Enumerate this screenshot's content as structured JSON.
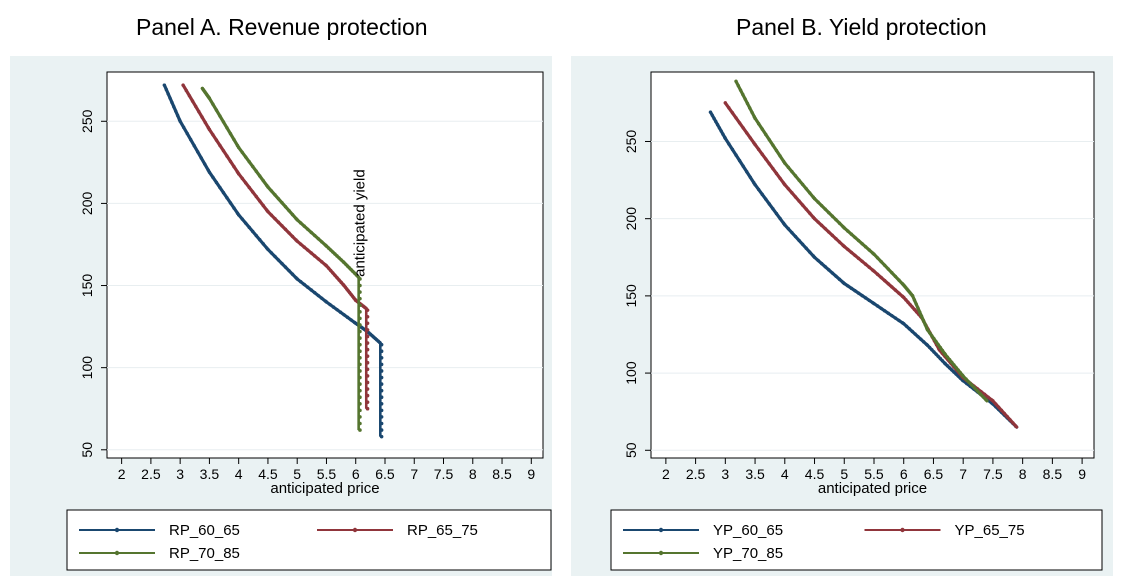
{
  "colors": {
    "outer_bg": "#eaf2f3",
    "plot_bg": "#ffffff",
    "grid": "#e8eef0",
    "series": [
      "#1a476f",
      "#90353b",
      "#55752f"
    ]
  },
  "chart_data": [
    {
      "type": "line",
      "title": "Panel A. Revenue protection",
      "xlabel": "anticipated price",
      "ylabel": "",
      "xlim": [
        1.75,
        9.2
      ],
      "ylim": [
        45,
        280
      ],
      "xticks": [
        "2",
        "2.5",
        "3",
        "3.5",
        "4",
        "4.5",
        "5",
        "5.5",
        "6",
        "6.5",
        "7",
        "7.5",
        "8",
        "8.5",
        "9"
      ],
      "yticks": [
        "50",
        "100",
        "150",
        "200",
        "250"
      ],
      "annotation": {
        "text": "anticipated yield",
        "x": 6.05,
        "y": 140
      },
      "legend": [
        "RP_60_65",
        "RP_65_75",
        "RP_70_85"
      ],
      "series": [
        {
          "name": "RP_60_65",
          "vertical": [
            6.42,
            58,
            115
          ],
          "points": [
            [
              2.73,
              272
            ],
            [
              3,
              250
            ],
            [
              3.5,
              219
            ],
            [
              4,
              193
            ],
            [
              4.5,
              172
            ],
            [
              5,
              154
            ],
            [
              5.5,
              140
            ],
            [
              6,
              127
            ],
            [
              6.2,
              122
            ],
            [
              6.42,
              115
            ]
          ]
        },
        {
          "name": "RP_65_75",
          "vertical": [
            6.18,
            75,
            136
          ],
          "points": [
            [
              3.05,
              272
            ],
            [
              3.5,
              245
            ],
            [
              4,
              218
            ],
            [
              4.5,
              195
            ],
            [
              5,
              177
            ],
            [
              5.5,
              162
            ],
            [
              5.8,
              150
            ],
            [
              6,
              141
            ],
            [
              6.18,
              136
            ]
          ]
        },
        {
          "name": "RP_70_85",
          "vertical": [
            6.05,
            62,
            155
          ],
          "points": [
            [
              3.38,
              270
            ],
            [
              3.5,
              264
            ],
            [
              4,
              234
            ],
            [
              4.5,
              210
            ],
            [
              5,
              190
            ],
            [
              5.5,
              174
            ],
            [
              5.8,
              164
            ],
            [
              6.05,
              155
            ]
          ]
        }
      ]
    },
    {
      "type": "line",
      "title": "Panel B. Yield protection",
      "xlabel": "anticipated price",
      "ylabel": "",
      "xlim": [
        1.75,
        9.2
      ],
      "ylim": [
        45,
        295
      ],
      "xticks": [
        "2",
        "2.5",
        "3",
        "3.5",
        "4",
        "4.5",
        "5",
        "5.5",
        "6",
        "6.5",
        "7",
        "7.5",
        "8",
        "8.5",
        "9"
      ],
      "yticks": [
        "50",
        "100",
        "150",
        "200",
        "250"
      ],
      "legend": [
        "YP_60_65",
        "YP_65_75",
        "YP_70_85"
      ],
      "series": [
        {
          "name": "YP_60_65",
          "points": [
            [
              2.75,
              269
            ],
            [
              3,
              252
            ],
            [
              3.5,
              222
            ],
            [
              4,
              196
            ],
            [
              4.5,
              175
            ],
            [
              5,
              158
            ],
            [
              5.5,
              145
            ],
            [
              6,
              132
            ],
            [
              6.4,
              118
            ],
            [
              6.7,
              106
            ],
            [
              7,
              95
            ],
            [
              7.5,
              80
            ],
            [
              7.9,
              65
            ]
          ]
        },
        {
          "name": "YP_65_75",
          "points": [
            [
              3,
              275
            ],
            [
              3.5,
              248
            ],
            [
              4,
              222
            ],
            [
              4.5,
              200
            ],
            [
              5,
              182
            ],
            [
              5.5,
              166
            ],
            [
              6,
              149
            ],
            [
              6.3,
              136
            ],
            [
              6.6,
              115
            ],
            [
              7,
              97
            ],
            [
              7.5,
              82
            ],
            [
              7.9,
              65
            ]
          ]
        },
        {
          "name": "YP_70_85",
          "points": [
            [
              3.18,
              289
            ],
            [
              3.5,
              265
            ],
            [
              4,
              236
            ],
            [
              4.5,
              213
            ],
            [
              5,
              194
            ],
            [
              5.5,
              177
            ],
            [
              6,
              157
            ],
            [
              6.15,
              150
            ],
            [
              6.4,
              128
            ],
            [
              6.7,
              112
            ],
            [
              7,
              98
            ],
            [
              7.4,
              82
            ]
          ]
        }
      ]
    }
  ]
}
